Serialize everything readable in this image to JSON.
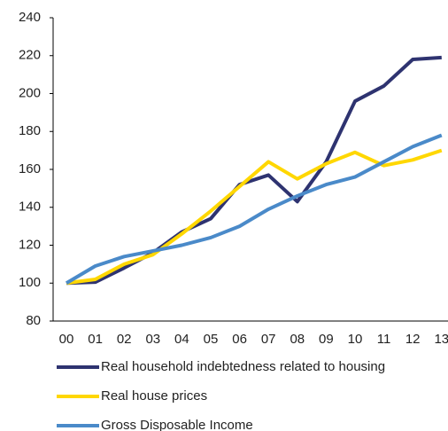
{
  "chart_data": {
    "type": "line",
    "categories": [
      "00",
      "01",
      "02",
      "03",
      "04",
      "05",
      "06",
      "07",
      "08",
      "09",
      "10",
      "11",
      "12",
      "13"
    ],
    "series": [
      {
        "name": "Real household indebtedness related to housing",
        "color": "#2e3370",
        "values": [
          100,
          100.5,
          108,
          116,
          127,
          134,
          152,
          157,
          143,
          164,
          196,
          204,
          218,
          219
        ]
      },
      {
        "name": "Real house prices",
        "color": "#ffd700",
        "values": [
          100,
          102,
          110,
          115,
          126,
          138,
          151,
          164,
          155,
          163,
          169,
          162,
          165,
          170
        ]
      },
      {
        "name": "Gross Disposable Income",
        "color": "#4a8ac9",
        "values": [
          100,
          109,
          114,
          117,
          120,
          124,
          130,
          139,
          146,
          152,
          156,
          164,
          172,
          178
        ]
      }
    ],
    "ylim": [
      80,
      240
    ],
    "yticks": [
      80,
      100,
      120,
      140,
      160,
      180,
      200,
      220,
      240
    ],
    "grid": false
  }
}
